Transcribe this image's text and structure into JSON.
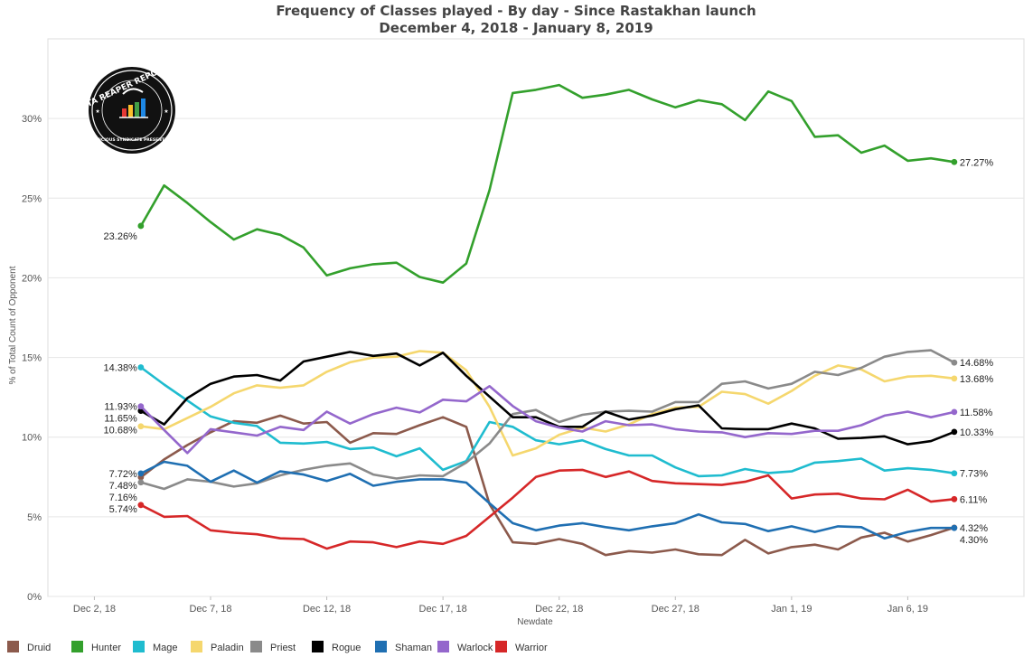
{
  "chart_data": {
    "type": "line",
    "title": "Frequency of Classes played - By day - Since Rastakhan launch",
    "subtitle": "December 4, 2018 - January 8, 2019",
    "xlabel": "Newdate",
    "ylabel": "% of Total Count of Opponent",
    "ylim": [
      0,
      35
    ],
    "yticks": [
      0,
      5,
      10,
      15,
      20,
      25,
      30
    ],
    "ytick_labels": [
      "0%",
      "5%",
      "10%",
      "15%",
      "20%",
      "25%",
      "30%"
    ],
    "xlim": [
      "2018-11-30",
      "2019-01-11"
    ],
    "xticks": [
      "2018-12-02",
      "2018-12-07",
      "2018-12-12",
      "2018-12-17",
      "2018-12-22",
      "2018-12-27",
      "2019-01-01",
      "2019-01-06"
    ],
    "xtick_labels": [
      "Dec 2, 18",
      "Dec 7, 18",
      "Dec 12, 18",
      "Dec 17, 18",
      "Dec 22, 18",
      "Dec 27, 18",
      "Jan 1, 19",
      "Jan 6, 19"
    ],
    "x": [
      "2018-12-04",
      "2018-12-05",
      "2018-12-06",
      "2018-12-07",
      "2018-12-08",
      "2018-12-09",
      "2018-12-10",
      "2018-12-11",
      "2018-12-12",
      "2018-12-13",
      "2018-12-14",
      "2018-12-15",
      "2018-12-16",
      "2018-12-17",
      "2018-12-18",
      "2018-12-19",
      "2018-12-20",
      "2018-12-21",
      "2018-12-22",
      "2018-12-23",
      "2018-12-24",
      "2018-12-25",
      "2018-12-26",
      "2018-12-27",
      "2018-12-28",
      "2018-12-29",
      "2018-12-30",
      "2018-12-31",
      "2019-01-01",
      "2019-01-02",
      "2019-01-03",
      "2019-01-04",
      "2019-01-05",
      "2019-01-06",
      "2019-01-07",
      "2019-01-08"
    ],
    "grid": true,
    "legend_position": "bottom",
    "series": [
      {
        "name": "Druid",
        "color": "#8c5a4c",
        "values": [
          7.48,
          8.6,
          9.5,
          10.3,
          11.0,
          10.9,
          11.35,
          10.85,
          10.95,
          9.65,
          10.25,
          10.2,
          10.75,
          11.25,
          10.65,
          5.8,
          3.4,
          3.3,
          3.6,
          3.3,
          2.6,
          2.85,
          2.75,
          2.95,
          2.65,
          2.6,
          3.55,
          2.7,
          3.1,
          3.25,
          2.95,
          3.7,
          4.0,
          3.45,
          3.85,
          4.32
        ],
        "start_label": "7.48%",
        "end_label": "4.32%"
      },
      {
        "name": "Hunter",
        "color": "#33a02c",
        "values": [
          23.26,
          25.8,
          24.7,
          23.5,
          22.4,
          23.05,
          22.7,
          21.9,
          20.15,
          20.6,
          20.85,
          20.95,
          20.05,
          19.7,
          20.9,
          25.5,
          31.6,
          31.8,
          32.1,
          31.3,
          31.5,
          31.8,
          31.2,
          30.7,
          31.15,
          30.9,
          29.9,
          31.7,
          31.1,
          28.85,
          28.95,
          27.85,
          28.3,
          27.35,
          27.5,
          27.27
        ],
        "start_label": "23.26%",
        "end_label": "27.27%"
      },
      {
        "name": "Mage",
        "color": "#1fbccf",
        "values": [
          14.38,
          13.3,
          12.3,
          11.3,
          10.9,
          10.7,
          9.65,
          9.6,
          9.7,
          9.25,
          9.35,
          8.8,
          9.3,
          7.95,
          8.5,
          10.95,
          10.65,
          9.8,
          9.55,
          9.8,
          9.25,
          8.85,
          8.85,
          8.1,
          7.55,
          7.6,
          8.0,
          7.75,
          7.85,
          8.4,
          8.5,
          8.65,
          7.9,
          8.05,
          7.95,
          7.73
        ],
        "start_label": "14.38%",
        "end_label": "7.73%"
      },
      {
        "name": "Paladin",
        "color": "#f5d76e",
        "values": [
          10.68,
          10.5,
          11.2,
          11.9,
          12.75,
          13.25,
          13.1,
          13.25,
          14.1,
          14.7,
          15.0,
          15.05,
          15.4,
          15.3,
          14.2,
          11.9,
          8.85,
          9.3,
          10.15,
          10.6,
          10.35,
          10.8,
          11.45,
          11.85,
          11.9,
          12.85,
          12.7,
          12.1,
          12.9,
          13.85,
          14.5,
          14.25,
          13.5,
          13.8,
          13.85,
          13.68
        ],
        "start_label": "10.68%",
        "end_label": "13.68%"
      },
      {
        "name": "Priest",
        "color": "#8a8a8a",
        "values": [
          7.16,
          6.75,
          7.35,
          7.2,
          6.9,
          7.1,
          7.6,
          7.95,
          8.2,
          8.35,
          7.65,
          7.4,
          7.6,
          7.55,
          8.4,
          9.6,
          11.45,
          11.7,
          10.95,
          11.4,
          11.6,
          11.65,
          11.6,
          12.2,
          12.2,
          13.35,
          13.5,
          13.05,
          13.35,
          14.1,
          13.9,
          14.35,
          15.05,
          15.35,
          15.45,
          14.68
        ],
        "start_label": "7.16%",
        "end_label": "14.68%"
      },
      {
        "name": "Rogue",
        "color": "#000000",
        "values": [
          11.65,
          10.8,
          12.45,
          13.35,
          13.8,
          13.9,
          13.55,
          14.75,
          15.05,
          15.35,
          15.1,
          15.25,
          14.5,
          15.3,
          13.85,
          12.55,
          11.25,
          11.25,
          10.65,
          10.65,
          11.6,
          11.1,
          11.35,
          11.75,
          12.0,
          10.55,
          10.5,
          10.5,
          10.85,
          10.55,
          9.9,
          9.95,
          10.05,
          9.55,
          9.75,
          10.33
        ],
        "start_label": "11.65%",
        "end_label": "10.33%"
      },
      {
        "name": "Shaman",
        "color": "#1f6fb2",
        "values": [
          7.72,
          8.45,
          8.2,
          7.2,
          7.9,
          7.15,
          7.85,
          7.65,
          7.25,
          7.7,
          6.95,
          7.2,
          7.35,
          7.35,
          7.15,
          5.85,
          4.6,
          4.15,
          4.45,
          4.6,
          4.35,
          4.15,
          4.4,
          4.6,
          5.15,
          4.65,
          4.55,
          4.1,
          4.4,
          4.05,
          4.4,
          4.35,
          3.65,
          4.05,
          4.3,
          4.3
        ],
        "start_label": "7.72%",
        "end_label": "4.30%"
      },
      {
        "name": "Warlock",
        "color": "#9467cc",
        "values": [
          11.93,
          10.45,
          9.0,
          10.5,
          10.3,
          10.1,
          10.65,
          10.45,
          11.6,
          10.85,
          11.45,
          11.85,
          11.55,
          12.35,
          12.25,
          13.2,
          11.95,
          11.0,
          10.6,
          10.35,
          11.0,
          10.75,
          10.8,
          10.5,
          10.35,
          10.3,
          10.0,
          10.25,
          10.2,
          10.4,
          10.4,
          10.75,
          11.35,
          11.6,
          11.25,
          11.58
        ],
        "start_label": "11.93%",
        "end_label": "11.58%"
      },
      {
        "name": "Warrior",
        "color": "#d62728",
        "values": [
          5.74,
          5.0,
          5.05,
          4.15,
          4.0,
          3.9,
          3.65,
          3.6,
          3.0,
          3.45,
          3.4,
          3.1,
          3.45,
          3.3,
          3.8,
          5.0,
          6.2,
          7.5,
          7.9,
          7.95,
          7.5,
          7.85,
          7.25,
          7.1,
          7.05,
          7.0,
          7.2,
          7.6,
          6.15,
          6.4,
          6.45,
          6.15,
          6.1,
          6.7,
          5.95,
          6.11
        ],
        "start_label": "5.74%",
        "end_label": "6.11%"
      }
    ]
  },
  "logo": {
    "text_top": "DATA REAPER REPORT",
    "text_bottom": "VICIOUS SYNDICATE PRESENTS"
  }
}
